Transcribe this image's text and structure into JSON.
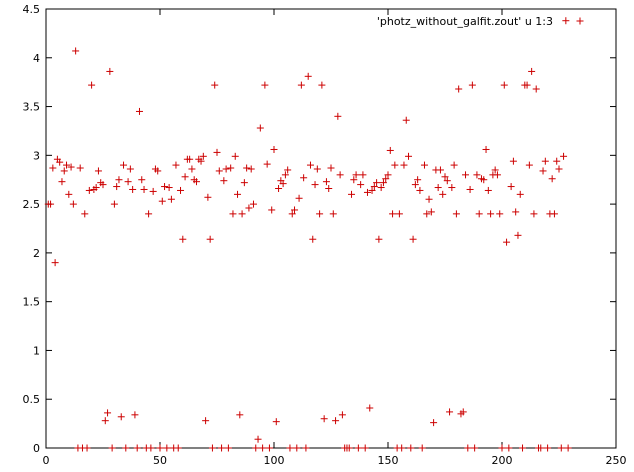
{
  "chart_data": {
    "type": "scatter",
    "title": "",
    "xlabel": "",
    "ylabel": "",
    "xlim": [
      0,
      250
    ],
    "ylim": [
      0,
      4.5
    ],
    "xticks": [
      0,
      50,
      100,
      150,
      200,
      250
    ],
    "yticks": [
      0,
      0.5,
      1,
      1.5,
      2,
      2.5,
      3,
      3.5,
      4,
      4.5
    ],
    "xtick_labels": [
      "0",
      "50",
      "100",
      "150",
      "200",
      "250"
    ],
    "ytick_labels": [
      "0",
      "0.5",
      "1",
      "1.5",
      "2",
      "2.5",
      "3",
      "3.5",
      "4",
      "4.5"
    ],
    "grid": false,
    "legend_position": "top-right",
    "marker": "plus",
    "series": [
      {
        "name": "'photz_without_galfit.zout' u 1:3",
        "color": "#cc0000",
        "points": [
          [
            1,
            2.5
          ],
          [
            2,
            2.5
          ],
          [
            3,
            2.87
          ],
          [
            4,
            1.9
          ],
          [
            5,
            2.96
          ],
          [
            6,
            2.93
          ],
          [
            7,
            2.73
          ],
          [
            8,
            2.84
          ],
          [
            9,
            2.9
          ],
          [
            10,
            2.6
          ],
          [
            11,
            2.88
          ],
          [
            12,
            2.5
          ],
          [
            13,
            4.07
          ],
          [
            14,
            0
          ],
          [
            15,
            2.87
          ],
          [
            16,
            0
          ],
          [
            17,
            2.4
          ],
          [
            18,
            0
          ],
          [
            19,
            2.64
          ],
          [
            20,
            3.72
          ],
          [
            21,
            2.65
          ],
          [
            22,
            2.67
          ],
          [
            23,
            2.84
          ],
          [
            24,
            2.72
          ],
          [
            25,
            2.7
          ],
          [
            26,
            0.28
          ],
          [
            27,
            0.36
          ],
          [
            28,
            3.86
          ],
          [
            29,
            0
          ],
          [
            30,
            2.5
          ],
          [
            31,
            2.68
          ],
          [
            32,
            2.75
          ],
          [
            33,
            0.32
          ],
          [
            34,
            2.9
          ],
          [
            35,
            0
          ],
          [
            36,
            2.73
          ],
          [
            37,
            2.86
          ],
          [
            38,
            2.65
          ],
          [
            39,
            0.34
          ],
          [
            40,
            0
          ],
          [
            41,
            3.45
          ],
          [
            42,
            2.75
          ],
          [
            43,
            2.65
          ],
          [
            44,
            0
          ],
          [
            45,
            2.4
          ],
          [
            46,
            0
          ],
          [
            47,
            2.63
          ],
          [
            48,
            2.86
          ],
          [
            49,
            2.84
          ],
          [
            50,
            0
          ],
          [
            51,
            2.53
          ],
          [
            52,
            2.68
          ],
          [
            53,
            0
          ],
          [
            54,
            2.67
          ],
          [
            55,
            2.55
          ],
          [
            56,
            0
          ],
          [
            57,
            2.9
          ],
          [
            58,
            0
          ],
          [
            59,
            2.64
          ],
          [
            60,
            2.14
          ],
          [
            61,
            2.78
          ],
          [
            62,
            2.96
          ],
          [
            63,
            2.96
          ],
          [
            64,
            2.86
          ],
          [
            65,
            2.75
          ],
          [
            66,
            2.73
          ],
          [
            67,
            2.96
          ],
          [
            68,
            2.94
          ],
          [
            69,
            2.99
          ],
          [
            70,
            0.28
          ],
          [
            71,
            2.57
          ],
          [
            72,
            2.14
          ],
          [
            73,
            0
          ],
          [
            74,
            3.72
          ],
          [
            75,
            3.03
          ],
          [
            76,
            2.84
          ],
          [
            77,
            0
          ],
          [
            78,
            2.74
          ],
          [
            79,
            2.86
          ],
          [
            80,
            0
          ],
          [
            81,
            2.87
          ],
          [
            82,
            2.4
          ],
          [
            83,
            2.99
          ],
          [
            84,
            2.6
          ],
          [
            85,
            0.34
          ],
          [
            86,
            2.4
          ],
          [
            87,
            2.72
          ],
          [
            88,
            2.87
          ],
          [
            89,
            2.46
          ],
          [
            90,
            2.86
          ],
          [
            91,
            2.5
          ],
          [
            92,
            0
          ],
          [
            93,
            0.09
          ],
          [
            94,
            3.28
          ],
          [
            95,
            0
          ],
          [
            96,
            3.72
          ],
          [
            97,
            2.91
          ],
          [
            98,
            0
          ],
          [
            99,
            2.44
          ],
          [
            100,
            3.06
          ],
          [
            101,
            0.27
          ],
          [
            102,
            2.66
          ],
          [
            103,
            2.74
          ],
          [
            104,
            2.71
          ],
          [
            105,
            2.8
          ],
          [
            106,
            2.85
          ],
          [
            107,
            0
          ],
          [
            108,
            2.4
          ],
          [
            109,
            2.44
          ],
          [
            110,
            0
          ],
          [
            111,
            2.56
          ],
          [
            112,
            3.72
          ],
          [
            113,
            2.77
          ],
          [
            114,
            0
          ],
          [
            115,
            3.81
          ],
          [
            116,
            2.9
          ],
          [
            117,
            2.14
          ],
          [
            118,
            2.7
          ],
          [
            119,
            2.86
          ],
          [
            120,
            2.4
          ],
          [
            121,
            3.72
          ],
          [
            122,
            0.3
          ],
          [
            123,
            2.73
          ],
          [
            124,
            2.66
          ],
          [
            125,
            2.87
          ],
          [
            126,
            2.4
          ],
          [
            127,
            0.28
          ],
          [
            128,
            3.4
          ],
          [
            129,
            2.8
          ],
          [
            130,
            0.34
          ],
          [
            131,
            0
          ],
          [
            132,
            0
          ],
          [
            133,
            0
          ],
          [
            134,
            2.6
          ],
          [
            135,
            2.75
          ],
          [
            136,
            2.8
          ],
          [
            137,
            0
          ],
          [
            138,
            2.7
          ],
          [
            139,
            2.8
          ],
          [
            140,
            0
          ],
          [
            141,
            2.62
          ],
          [
            142,
            0.41
          ],
          [
            143,
            2.64
          ],
          [
            144,
            2.68
          ],
          [
            145,
            2.72
          ],
          [
            146,
            2.14
          ],
          [
            147,
            2.67
          ],
          [
            148,
            2.72
          ],
          [
            149,
            2.76
          ],
          [
            150,
            2.8
          ],
          [
            151,
            3.05
          ],
          [
            152,
            2.4
          ],
          [
            153,
            2.9
          ],
          [
            154,
            0
          ],
          [
            155,
            2.4
          ],
          [
            156,
            0
          ],
          [
            157,
            2.9
          ],
          [
            158,
            3.36
          ],
          [
            159,
            2.99
          ],
          [
            160,
            0
          ],
          [
            161,
            2.14
          ],
          [
            162,
            2.7
          ],
          [
            163,
            2.75
          ],
          [
            164,
            2.64
          ],
          [
            165,
            0
          ],
          [
            166,
            2.9
          ],
          [
            167,
            2.4
          ],
          [
            168,
            2.55
          ],
          [
            169,
            2.42
          ],
          [
            170,
            0.26
          ],
          [
            171,
            2.85
          ],
          [
            172,
            2.67
          ],
          [
            173,
            2.85
          ],
          [
            174,
            2.6
          ],
          [
            175,
            2.78
          ],
          [
            176,
            2.74
          ],
          [
            177,
            0.37
          ],
          [
            178,
            2.67
          ],
          [
            179,
            2.9
          ],
          [
            180,
            2.4
          ],
          [
            181,
            3.68
          ],
          [
            182,
            0.35
          ],
          [
            183,
            0.37
          ],
          [
            184,
            2.8
          ],
          [
            185,
            0
          ],
          [
            186,
            2.65
          ],
          [
            187,
            3.72
          ],
          [
            188,
            0
          ],
          [
            189,
            2.8
          ],
          [
            190,
            2.4
          ],
          [
            191,
            2.76
          ],
          [
            192,
            2.75
          ],
          [
            193,
            3.06
          ],
          [
            194,
            2.64
          ],
          [
            195,
            2.4
          ],
          [
            196,
            2.8
          ],
          [
            197,
            2.85
          ],
          [
            198,
            2.8
          ],
          [
            199,
            2.4
          ],
          [
            200,
            0
          ],
          [
            201,
            3.72
          ],
          [
            202,
            2.11
          ],
          [
            203,
            0
          ],
          [
            204,
            2.68
          ],
          [
            205,
            2.94
          ],
          [
            206,
            2.42
          ],
          [
            207,
            2.18
          ],
          [
            208,
            2.6
          ],
          [
            209,
            0
          ],
          [
            210,
            3.72
          ],
          [
            211,
            3.72
          ],
          [
            212,
            2.9
          ],
          [
            213,
            3.86
          ],
          [
            214,
            2.4
          ],
          [
            215,
            3.68
          ],
          [
            216,
            0
          ],
          [
            217,
            0
          ],
          [
            218,
            2.84
          ],
          [
            219,
            2.94
          ],
          [
            220,
            0
          ],
          [
            221,
            2.4
          ],
          [
            222,
            2.76
          ],
          [
            223,
            2.4
          ],
          [
            224,
            2.94
          ],
          [
            225,
            2.86
          ],
          [
            226,
            0
          ],
          [
            227,
            2.99
          ],
          [
            228,
            4.38
          ],
          [
            229,
            0
          ]
        ]
      }
    ]
  }
}
